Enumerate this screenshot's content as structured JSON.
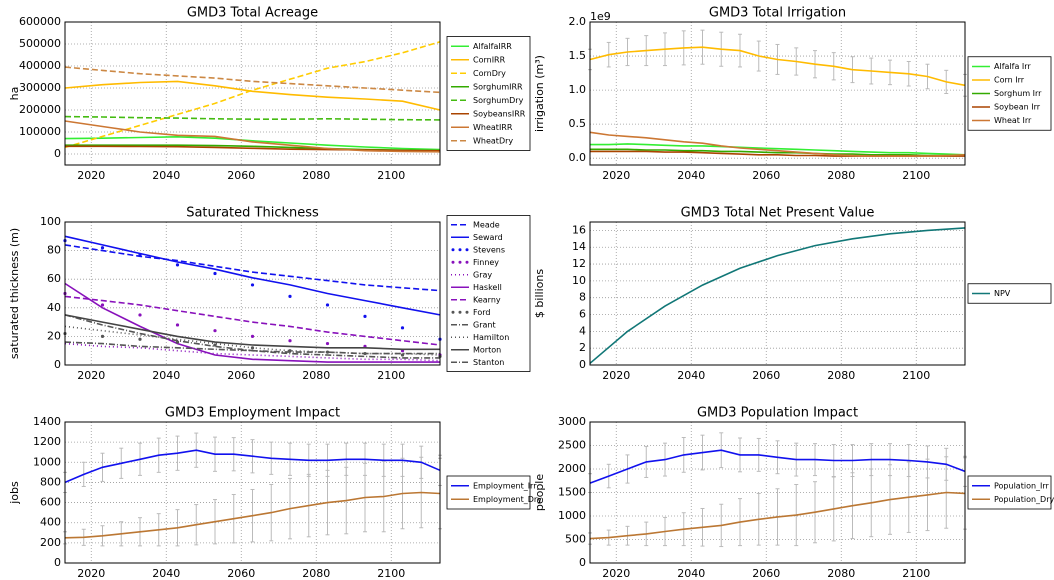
{
  "chart_data": [
    {
      "type": "line",
      "title": "GMD3 Total Acreage",
      "ylabel": "ha",
      "grid": true,
      "legend": "outside-right",
      "x": [
        2013,
        2023,
        2033,
        2043,
        2053,
        2063,
        2073,
        2083,
        2093,
        2103,
        2113
      ],
      "xlim": [
        2013,
        2113
      ],
      "xticks": [
        2020,
        2040,
        2060,
        2080,
        2100
      ],
      "ylim": [
        -50000,
        600000
      ],
      "yticks": [
        0,
        100000,
        200000,
        300000,
        400000,
        500000,
        600000
      ],
      "series": [
        {
          "name": "AlfalfaIRR",
          "color": "#33ee33",
          "style": "solid",
          "values": [
            70000,
            72000,
            75000,
            78000,
            72000,
            60000,
            50000,
            40000,
            32000,
            25000,
            20000
          ]
        },
        {
          "name": "CornIRR",
          "color": "#ffbb00",
          "style": "solid",
          "values": [
            300000,
            315000,
            325000,
            330000,
            310000,
            285000,
            270000,
            258000,
            250000,
            240000,
            200000
          ]
        },
        {
          "name": "CornDry",
          "color": "#ffcc00",
          "style": "dashed",
          "values": [
            30000,
            80000,
            130000,
            180000,
            230000,
            290000,
            340000,
            390000,
            420000,
            460000,
            510000
          ]
        },
        {
          "name": "SorghumIRR",
          "color": "#33aa00",
          "style": "solid",
          "values": [
            40000,
            40000,
            40000,
            40000,
            38000,
            35000,
            30000,
            25000,
            20000,
            18000,
            15000
          ]
        },
        {
          "name": "SorghumDry",
          "color": "#44bb11",
          "style": "dashed",
          "values": [
            170000,
            168000,
            165000,
            163000,
            160000,
            158000,
            158000,
            160000,
            158000,
            156000,
            155000
          ]
        },
        {
          "name": "SoybeansIRR",
          "color": "#aa4400",
          "style": "solid",
          "values": [
            35000,
            35000,
            34000,
            33000,
            30000,
            26000,
            22000,
            20000,
            18000,
            16000,
            15000
          ]
        },
        {
          "name": "WheatIRR",
          "color": "#cc7733",
          "style": "solid",
          "values": [
            150000,
            125000,
            100000,
            85000,
            80000,
            55000,
            40000,
            25000,
            15000,
            12000,
            10000
          ]
        },
        {
          "name": "WheatDry",
          "color": "#cc8844",
          "style": "dashed",
          "values": [
            395000,
            380000,
            365000,
            355000,
            345000,
            330000,
            320000,
            310000,
            300000,
            290000,
            280000
          ]
        }
      ]
    },
    {
      "type": "line",
      "title": "GMD3 Total Irrigation",
      "ylabel": "irrigation (m³)",
      "y_scale_label": "1e9",
      "grid": true,
      "legend": "outside-right",
      "x": [
        2013,
        2018,
        2023,
        2028,
        2033,
        2038,
        2043,
        2048,
        2053,
        2058,
        2063,
        2068,
        2073,
        2078,
        2083,
        2088,
        2093,
        2098,
        2103,
        2108,
        2113
      ],
      "xlim": [
        2013,
        2113
      ],
      "xticks": [
        2020,
        2040,
        2060,
        2080,
        2100
      ],
      "ylim": [
        -0.1,
        2.0
      ],
      "yticks": [
        {
          "value": 0,
          "label": "0.0"
        },
        0.5,
        {
          "value": 1,
          "label": "1.0"
        },
        1.5,
        {
          "value": 2,
          "label": "2.0"
        }
      ],
      "series": [
        {
          "name": "Alfalfa Irr",
          "color": "#33ee33",
          "style": "solid",
          "values": [
            0.2,
            0.2,
            0.21,
            0.2,
            0.19,
            0.18,
            0.18,
            0.17,
            0.16,
            0.15,
            0.14,
            0.13,
            0.12,
            0.11,
            0.1,
            0.09,
            0.08,
            0.08,
            0.07,
            0.06,
            0.05
          ]
        },
        {
          "name": "Corn Irr",
          "color": "#ffbb00",
          "style": "solid",
          "values": [
            1.45,
            1.52,
            1.56,
            1.58,
            1.6,
            1.62,
            1.63,
            1.6,
            1.58,
            1.5,
            1.45,
            1.42,
            1.38,
            1.35,
            1.3,
            1.28,
            1.26,
            1.24,
            1.2,
            1.12,
            1.07
          ],
          "errors": [
            0.15,
            0.18,
            0.2,
            0.22,
            0.24,
            0.25,
            0.25,
            0.25,
            0.24,
            0.22,
            0.22,
            0.2,
            0.2,
            0.2,
            0.19,
            0.19,
            0.18,
            0.18,
            0.18,
            0.17,
            0.16
          ]
        },
        {
          "name": "Sorghum Irr",
          "color": "#33aa00",
          "style": "solid",
          "values": [
            0.13,
            0.13,
            0.13,
            0.12,
            0.12,
            0.11,
            0.11,
            0.1,
            0.1,
            0.09,
            0.08,
            0.08,
            0.07,
            0.06,
            0.06,
            0.05,
            0.05,
            0.05,
            0.04,
            0.04,
            0.04
          ]
        },
        {
          "name": "Soybean Irr",
          "color": "#aa4400",
          "style": "solid",
          "values": [
            0.1,
            0.1,
            0.1,
            0.1,
            0.09,
            0.09,
            0.08,
            0.07,
            0.06,
            0.05,
            0.05,
            0.04,
            0.04,
            0.03,
            0.03,
            0.03,
            0.03,
            0.03,
            0.03,
            0.03,
            0.03
          ]
        },
        {
          "name": "Wheat Irr",
          "color": "#cc7733",
          "style": "solid",
          "values": [
            0.38,
            0.34,
            0.32,
            0.3,
            0.27,
            0.24,
            0.22,
            0.18,
            0.15,
            0.13,
            0.11,
            0.09,
            0.07,
            0.05,
            0.04,
            0.03,
            0.03,
            0.03,
            0.03,
            0.04,
            0.05
          ]
        }
      ]
    },
    {
      "type": "line",
      "title": "Saturated Thickness",
      "ylabel": "saturated thickness (m)",
      "grid": true,
      "legend": "outside-right",
      "x": [
        2013,
        2023,
        2033,
        2043,
        2053,
        2063,
        2073,
        2083,
        2093,
        2103,
        2113
      ],
      "xlim": [
        2013,
        2113
      ],
      "xticks": [
        2020,
        2040,
        2060,
        2080,
        2100
      ],
      "ylim": [
        0,
        100
      ],
      "yticks": [
        0,
        20,
        40,
        60,
        80,
        100
      ],
      "series": [
        {
          "name": "Meade",
          "color": "#1111ee",
          "style": "dashed",
          "values": [
            84,
            80,
            76,
            73,
            69,
            65,
            62,
            59,
            56,
            54,
            52
          ]
        },
        {
          "name": "Seward",
          "color": "#1111ee",
          "style": "solid",
          "values": [
            90,
            84,
            78,
            72,
            67,
            61,
            56,
            50,
            45,
            40,
            35
          ]
        },
        {
          "name": "Stevens",
          "color": "#1111ee",
          "style": "dots",
          "values": [
            87,
            82,
            77,
            70,
            64,
            56,
            48,
            42,
            34,
            26,
            18
          ]
        },
        {
          "name": "Finney",
          "color": "#8811bb",
          "style": "dots",
          "values": [
            50,
            42,
            35,
            28,
            24,
            20,
            17,
            15,
            13,
            10,
            7
          ]
        },
        {
          "name": "Gray",
          "color": "#8811bb",
          "style": "dotted",
          "values": [
            15,
            13,
            12,
            10,
            8,
            7,
            6,
            5,
            4,
            4,
            3
          ]
        },
        {
          "name": "Haskell",
          "color": "#8811bb",
          "style": "solid",
          "values": [
            57,
            40,
            27,
            15,
            7,
            4,
            3,
            2,
            2,
            2,
            2
          ]
        },
        {
          "name": "Kearny",
          "color": "#8811bb",
          "style": "dashed",
          "values": [
            48,
            45,
            42,
            38,
            34,
            30,
            27,
            23,
            20,
            17,
            14
          ]
        },
        {
          "name": "Ford",
          "color": "#555555",
          "style": "dots",
          "values": [
            22,
            20,
            18,
            16,
            14,
            12,
            10,
            9,
            8,
            7,
            6
          ]
        },
        {
          "name": "Grant",
          "color": "#555555",
          "style": "dashdot",
          "values": [
            35,
            28,
            22,
            17,
            13,
            10,
            8,
            7,
            6,
            5,
            5
          ]
        },
        {
          "name": "Hamilton",
          "color": "#555555",
          "style": "dotted",
          "values": [
            27,
            24,
            21,
            18,
            15,
            12,
            10,
            9,
            8,
            8,
            7
          ]
        },
        {
          "name": "Morton",
          "color": "#444444",
          "style": "solid",
          "values": [
            35,
            30,
            25,
            20,
            16,
            14,
            13,
            12,
            12,
            11,
            11
          ]
        },
        {
          "name": "Stanton",
          "color": "#555555",
          "style": "dashdot",
          "values": [
            16,
            15,
            13,
            12,
            11,
            10,
            9,
            9,
            8,
            8,
            8
          ]
        }
      ]
    },
    {
      "type": "line",
      "title": "GMD3 Total Net Present Value",
      "ylabel": "$ billions",
      "grid": true,
      "legend": "outside-right",
      "x": [
        2013,
        2023,
        2033,
        2043,
        2053,
        2063,
        2073,
        2083,
        2093,
        2103,
        2113
      ],
      "xlim": [
        2013,
        2113
      ],
      "xticks": [
        2020,
        2040,
        2060,
        2080,
        2100
      ],
      "ylim": [
        0,
        17
      ],
      "yticks": [
        0,
        2,
        4,
        6,
        8,
        10,
        12,
        14,
        16
      ],
      "series": [
        {
          "name": "NPV",
          "color": "#117777",
          "style": "solid",
          "values": [
            0.2,
            4.0,
            7.0,
            9.5,
            11.5,
            13.0,
            14.2,
            15.0,
            15.6,
            16.0,
            16.3
          ]
        }
      ]
    },
    {
      "type": "line",
      "title": "GMD3 Employment Impact",
      "ylabel": "jobs",
      "grid": true,
      "legend": "outside-right",
      "x": [
        2013,
        2018,
        2023,
        2028,
        2033,
        2038,
        2043,
        2048,
        2053,
        2058,
        2063,
        2068,
        2073,
        2078,
        2083,
        2088,
        2093,
        2098,
        2103,
        2108,
        2113
      ],
      "xlim": [
        2013,
        2113
      ],
      "xticks": [
        2020,
        2040,
        2060,
        2080,
        2100
      ],
      "ylim": [
        0,
        1400
      ],
      "yticks": [
        0,
        200,
        400,
        600,
        800,
        1000,
        1200,
        1400
      ],
      "series": [
        {
          "name": "Employment_Irr",
          "color": "#1111ee",
          "style": "solid",
          "values": [
            800,
            880,
            950,
            990,
            1030,
            1070,
            1090,
            1120,
            1080,
            1080,
            1060,
            1040,
            1030,
            1020,
            1020,
            1030,
            1030,
            1020,
            1020,
            1000,
            920
          ],
          "errors": [
            100,
            120,
            140,
            150,
            160,
            170,
            170,
            170,
            170,
            165,
            165,
            160,
            160,
            160,
            160,
            160,
            160,
            160,
            160,
            160,
            150
          ]
        },
        {
          "name": "Employment_Dry",
          "color": "#bb7733",
          "style": "solid",
          "values": [
            250,
            255,
            270,
            290,
            310,
            330,
            350,
            380,
            410,
            440,
            470,
            500,
            540,
            570,
            600,
            620,
            650,
            660,
            690,
            700,
            690
          ],
          "errors": [
            60,
            80,
            100,
            120,
            140,
            160,
            180,
            200,
            220,
            240,
            260,
            280,
            300,
            310,
            320,
            330,
            340,
            350,
            350,
            350,
            350
          ]
        }
      ]
    },
    {
      "type": "line",
      "title": "GMD3 Population Impact",
      "ylabel": "people",
      "grid": true,
      "legend": "outside-right",
      "x": [
        2013,
        2018,
        2023,
        2028,
        2033,
        2038,
        2043,
        2048,
        2053,
        2058,
        2063,
        2068,
        2073,
        2078,
        2083,
        2088,
        2093,
        2098,
        2103,
        2108,
        2113
      ],
      "xlim": [
        2013,
        2113
      ],
      "xticks": [
        2020,
        2040,
        2060,
        2080,
        2100
      ],
      "ylim": [
        0,
        3000
      ],
      "yticks": [
        0,
        500,
        1000,
        1500,
        2000,
        2500,
        3000
      ],
      "series": [
        {
          "name": "Population_Irr",
          "color": "#1111ee",
          "style": "solid",
          "values": [
            1700,
            1850,
            2000,
            2150,
            2200,
            2300,
            2350,
            2400,
            2300,
            2300,
            2250,
            2200,
            2200,
            2180,
            2180,
            2200,
            2200,
            2180,
            2150,
            2100,
            1950
          ],
          "errors": [
            200,
            250,
            300,
            330,
            350,
            370,
            370,
            370,
            360,
            350,
            350,
            350,
            340,
            340,
            340,
            340,
            340,
            340,
            340,
            340,
            320
          ]
        },
        {
          "name": "Population_Dry",
          "color": "#bb7733",
          "style": "solid",
          "values": [
            520,
            540,
            580,
            620,
            670,
            720,
            760,
            800,
            870,
            930,
            980,
            1020,
            1080,
            1150,
            1220,
            1280,
            1350,
            1400,
            1450,
            1500,
            1480
          ],
          "errors": [
            120,
            160,
            200,
            250,
            300,
            350,
            400,
            450,
            500,
            550,
            600,
            650,
            650,
            680,
            700,
            720,
            740,
            750,
            760,
            760,
            760
          ]
        }
      ]
    }
  ]
}
